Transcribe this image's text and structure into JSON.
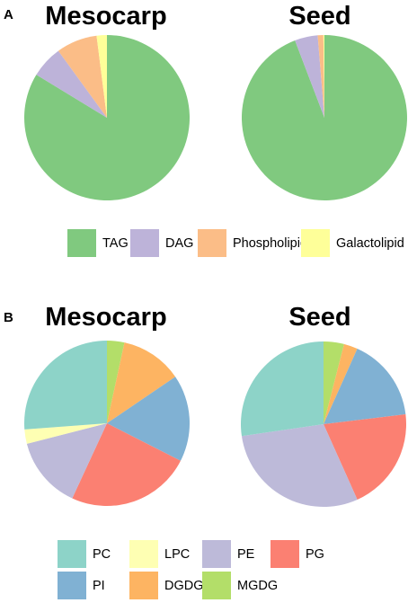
{
  "panels": [
    {
      "letter": "A",
      "legend": [
        {
          "label": "TAG",
          "color": "#80c97f"
        },
        {
          "label": "DAG",
          "color": "#bdb3d9"
        },
        {
          "label": "Phospholipid",
          "color": "#fbbd87"
        },
        {
          "label": "Galactolipid",
          "color": "#feff99"
        }
      ]
    },
    {
      "letter": "B",
      "legend": [
        {
          "label": "PC",
          "color": "#8dd3c8"
        },
        {
          "label": "LPC",
          "color": "#feffb3"
        },
        {
          "label": "PE",
          "color": "#bdbad9"
        },
        {
          "label": "PG",
          "color": "#fb8072"
        },
        {
          "label": "PI",
          "color": "#80b1d3"
        },
        {
          "label": "DGDG",
          "color": "#fdb462"
        },
        {
          "label": "MGDG",
          "color": "#b3de69"
        }
      ]
    }
  ],
  "chart_data": [
    {
      "type": "pie",
      "title": "Mesocarp",
      "labels": [
        "TAG",
        "DAG",
        "Phospholipid",
        "Galactolipid"
      ],
      "values": [
        83.7,
        6.3,
        8.0,
        2.0
      ],
      "colors": [
        "#80c97f",
        "#bdb3d9",
        "#fbbd87",
        "#feff99"
      ]
    },
    {
      "type": "pie",
      "title": "Seed",
      "labels": [
        "TAG",
        "DAG",
        "Phospholipid",
        "Galactolipid"
      ],
      "values": [
        94.2,
        4.5,
        1.1,
        0.2
      ],
      "colors": [
        "#80c97f",
        "#bdb3d9",
        "#fbbd87",
        "#feff99"
      ]
    },
    {
      "type": "pie",
      "title": "Mesocarp",
      "labels": [
        "MGDG",
        "DGDG",
        "PI",
        "PG",
        "PE",
        "LPC",
        "PC"
      ],
      "values": [
        3.4,
        12.1,
        17.0,
        24.4,
        14.1,
        2.8,
        26.2
      ],
      "colors": [
        "#b3de69",
        "#fdb462",
        "#80b1d3",
        "#fb8072",
        "#bdbad9",
        "#feffb3",
        "#8dd3c8"
      ]
    },
    {
      "type": "pie",
      "title": "Seed",
      "labels": [
        "MGDG",
        "DGDG",
        "PI",
        "PG",
        "PE",
        "LPC",
        "PC"
      ],
      "values": [
        4.0,
        2.7,
        16.4,
        20.2,
        29.4,
        0,
        27.3
      ],
      "colors": [
        "#b3de69",
        "#fdb462",
        "#80b1d3",
        "#fb8072",
        "#bdbad9",
        "#feffb3",
        "#8dd3c8"
      ]
    }
  ]
}
